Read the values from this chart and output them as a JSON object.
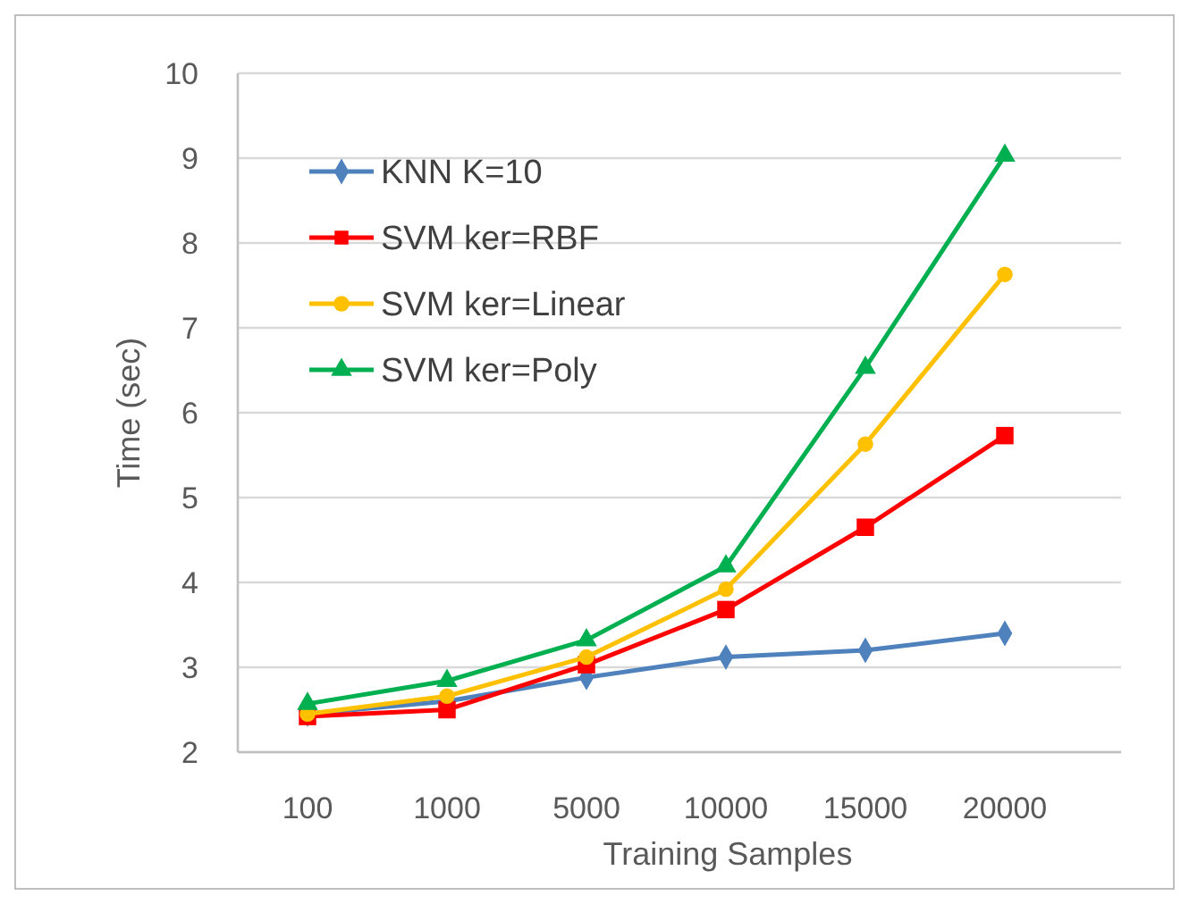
{
  "chart_data": {
    "type": "line",
    "xlabel": "Training Samples",
    "ylabel": "Time (sec)",
    "categories": [
      "100",
      "1000",
      "5000",
      "10000",
      "15000",
      "20000"
    ],
    "ylim": [
      2,
      10
    ],
    "yticks": [
      2,
      3,
      4,
      5,
      6,
      7,
      8,
      9,
      10
    ],
    "grid": "y",
    "legend": "top left",
    "series": [
      {
        "name": "KNN K=10",
        "color": "#4f81bd",
        "marker": "diamond",
        "values": [
          2.45,
          2.6,
          2.88,
          3.12,
          3.2,
          3.4
        ]
      },
      {
        "name": "SVM ker=RBF",
        "color": "#ff0000",
        "marker": "square",
        "values": [
          2.42,
          2.5,
          3.03,
          3.68,
          4.65,
          5.73
        ]
      },
      {
        "name": "SVM ker=Linear",
        "color": "#ffc000",
        "marker": "circle",
        "values": [
          2.45,
          2.66,
          3.12,
          3.92,
          5.63,
          7.63
        ]
      },
      {
        "name": "SVM ker=Poly",
        "color": "#00b050",
        "marker": "triangle",
        "values": [
          2.57,
          2.84,
          3.32,
          4.19,
          6.53,
          9.03
        ]
      }
    ]
  }
}
